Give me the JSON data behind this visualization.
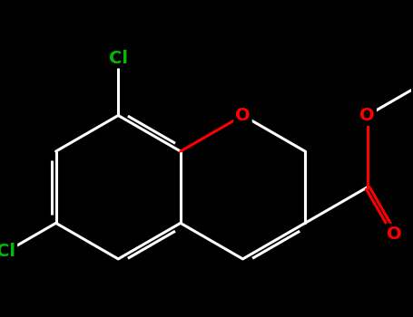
{
  "bg": "#000000",
  "bond_color": "#ffffff",
  "cl_color": "#00bb00",
  "o_color": "#ff0000",
  "lw": 2.2,
  "dbo": 0.06,
  "fs": 14,
  "fig_w": 4.55,
  "fig_h": 3.5,
  "dpi": 100,
  "bl": 1.0,
  "xlim": [
    -2.8,
    2.8
  ],
  "ylim": [
    -2.2,
    2.2
  ]
}
